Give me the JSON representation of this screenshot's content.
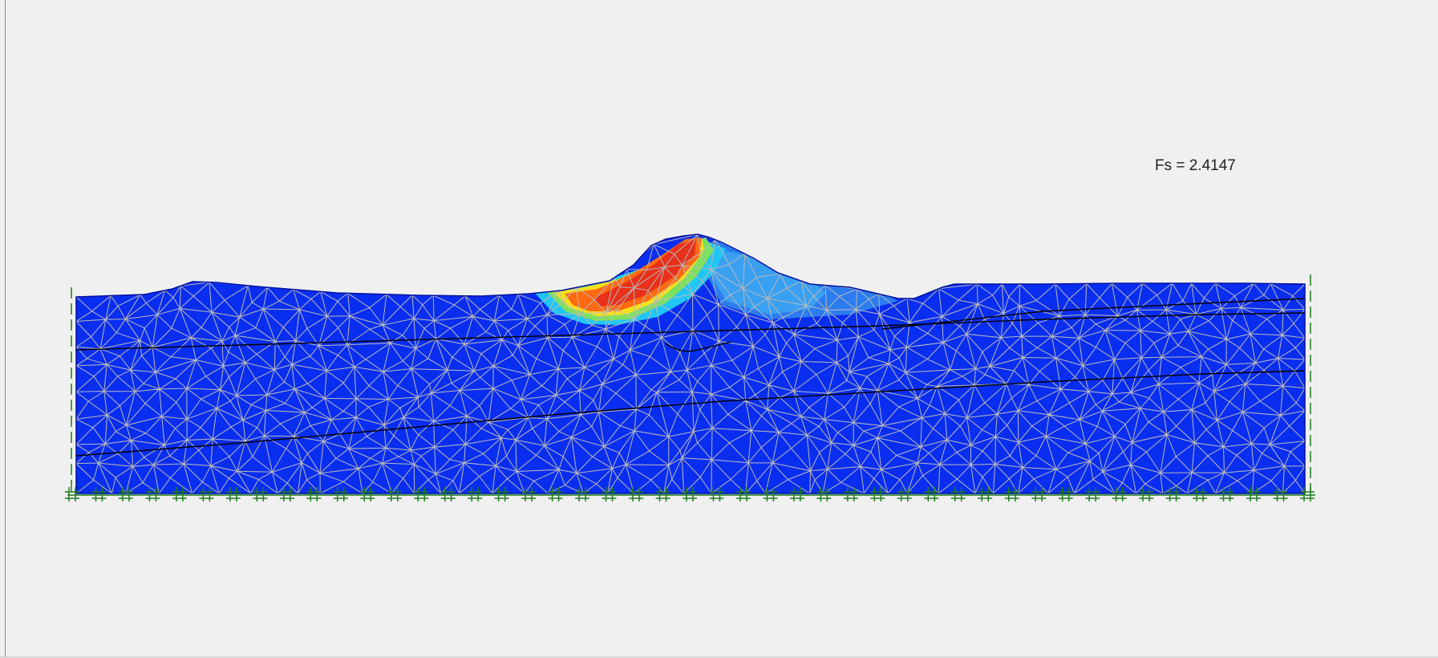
{
  "result": {
    "fs_label": "Fs = 2.4147",
    "safety_factor": 2.4147
  },
  "colors": {
    "background": "#f0f0f0",
    "domain_fill": "#0a2ef0",
    "mesh_line": "#b9b9b9",
    "layer_boundary": "#000000",
    "support_marker": "#1e7d1e",
    "contour_red": "#e8301a",
    "contour_orange": "#ff6a12",
    "contour_yellow": "#f7e11e",
    "contour_green": "#7fe060",
    "contour_cyan": "#21c6f4",
    "contour_lightblue": "#2a98f2"
  },
  "icons": {
    "bottom_support": "fixed-support-icon",
    "side_support": "roller-support-icon"
  }
}
